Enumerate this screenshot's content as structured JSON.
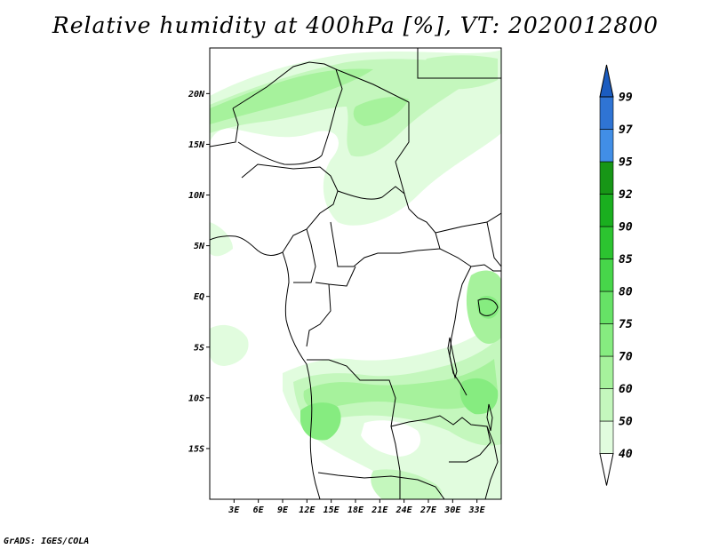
{
  "title": "Relative humidity at 400hPa [%], VT: 2020012800",
  "credit": "GrADS: IGES/COLA",
  "map": {
    "lon_range": [
      0,
      36
    ],
    "lat_range": [
      -20,
      24.5
    ],
    "lat_ticks": [
      {
        "value": 20,
        "label": "20N"
      },
      {
        "value": 15,
        "label": "15N"
      },
      {
        "value": 10,
        "label": "10N"
      },
      {
        "value": 5,
        "label": "5N"
      },
      {
        "value": 0,
        "label": "EQ"
      },
      {
        "value": -5,
        "label": "5S"
      },
      {
        "value": -10,
        "label": "10S"
      },
      {
        "value": -15,
        "label": "15S"
      }
    ],
    "lon_ticks": [
      {
        "value": 3,
        "label": "3E"
      },
      {
        "value": 6,
        "label": "6E"
      },
      {
        "value": 9,
        "label": "9E"
      },
      {
        "value": 12,
        "label": "12E"
      },
      {
        "value": 15,
        "label": "15E"
      },
      {
        "value": 18,
        "label": "18E"
      },
      {
        "value": 21,
        "label": "21E"
      },
      {
        "value": 24,
        "label": "24E"
      },
      {
        "value": 27,
        "label": "27E"
      },
      {
        "value": 30,
        "label": "30E"
      },
      {
        "value": 33,
        "label": "33E"
      }
    ]
  },
  "colorbar": {
    "levels": [
      "40",
      "50",
      "60",
      "70",
      "75",
      "80",
      "85",
      "90",
      "92",
      "95",
      "97",
      "99"
    ],
    "colors": [
      "#ffffff",
      "#e1fcde",
      "#c4f7bd",
      "#a6f29c",
      "#86ec80",
      "#66e266",
      "#47d64a",
      "#2cc430",
      "#1aaf1f",
      "#179616",
      "#418ee6",
      "#2f74d4",
      "#1b5cc0"
    ]
  },
  "fields": {
    "colors": {
      "light": "#e1fcde",
      "pale": "#c4f7bd",
      "mid": "#a6f29c",
      "strong": "#86ec80",
      "deep": "#66e266"
    }
  }
}
